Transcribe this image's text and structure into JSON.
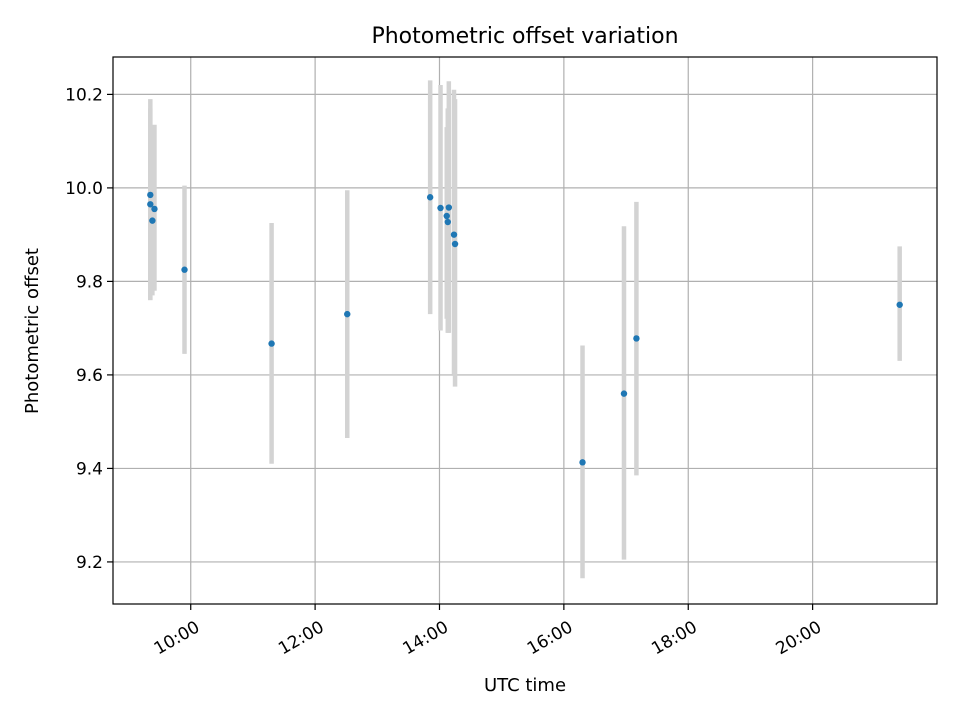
{
  "chart_data": {
    "type": "scatter",
    "title": "Photometric offset variation",
    "xlabel": "UTC time",
    "ylabel": "Photometric offset",
    "x_ticks": [
      "10:00",
      "12:00",
      "14:00",
      "16:00",
      "18:00",
      "20:00"
    ],
    "y_ticks": [
      "9.2",
      "9.4",
      "9.6",
      "9.8",
      "10.0",
      "10.2"
    ],
    "xlim": [
      "08:45",
      "22:00"
    ],
    "ylim": [
      9.11,
      10.28
    ],
    "grid": true,
    "marker_color": "#1f77b4",
    "errorbar_color": "#d3d3d3",
    "points": [
      {
        "x": "09:21",
        "y": 9.985,
        "yerr_low": 9.76,
        "yerr_high": 10.19
      },
      {
        "x": "09:21",
        "y": 9.965,
        "yerr_low": 9.76,
        "yerr_high": 10.17
      },
      {
        "x": "09:23",
        "y": 9.93,
        "yerr_low": 9.77,
        "yerr_high": 10.13
      },
      {
        "x": "09:25",
        "y": 9.955,
        "yerr_low": 9.78,
        "yerr_high": 10.135
      },
      {
        "x": "09:54",
        "y": 9.825,
        "yerr_low": 9.645,
        "yerr_high": 10.005
      },
      {
        "x": "11:18",
        "y": 9.667,
        "yerr_low": 9.41,
        "yerr_high": 9.925
      },
      {
        "x": "12:31",
        "y": 9.73,
        "yerr_low": 9.465,
        "yerr_high": 9.995
      },
      {
        "x": "13:51",
        "y": 9.98,
        "yerr_low": 9.73,
        "yerr_high": 10.23
      },
      {
        "x": "14:01",
        "y": 9.957,
        "yerr_low": 9.695,
        "yerr_high": 10.22
      },
      {
        "x": "14:07",
        "y": 9.94,
        "yerr_low": 9.72,
        "yerr_high": 10.13
      },
      {
        "x": "14:08",
        "y": 9.927,
        "yerr_low": 9.69,
        "yerr_high": 10.17
      },
      {
        "x": "14:09",
        "y": 9.958,
        "yerr_low": 9.69,
        "yerr_high": 10.228
      },
      {
        "x": "14:14",
        "y": 9.9,
        "yerr_low": 9.6,
        "yerr_high": 10.21
      },
      {
        "x": "14:15",
        "y": 9.88,
        "yerr_low": 9.575,
        "yerr_high": 10.19
      },
      {
        "x": "16:18",
        "y": 9.413,
        "yerr_low": 9.165,
        "yerr_high": 9.663
      },
      {
        "x": "16:58",
        "y": 9.56,
        "yerr_low": 9.205,
        "yerr_high": 9.918
      },
      {
        "x": "17:10",
        "y": 9.678,
        "yerr_low": 9.385,
        "yerr_high": 9.97
      },
      {
        "x": "21:24",
        "y": 9.75,
        "yerr_low": 9.63,
        "yerr_high": 9.875
      }
    ]
  }
}
